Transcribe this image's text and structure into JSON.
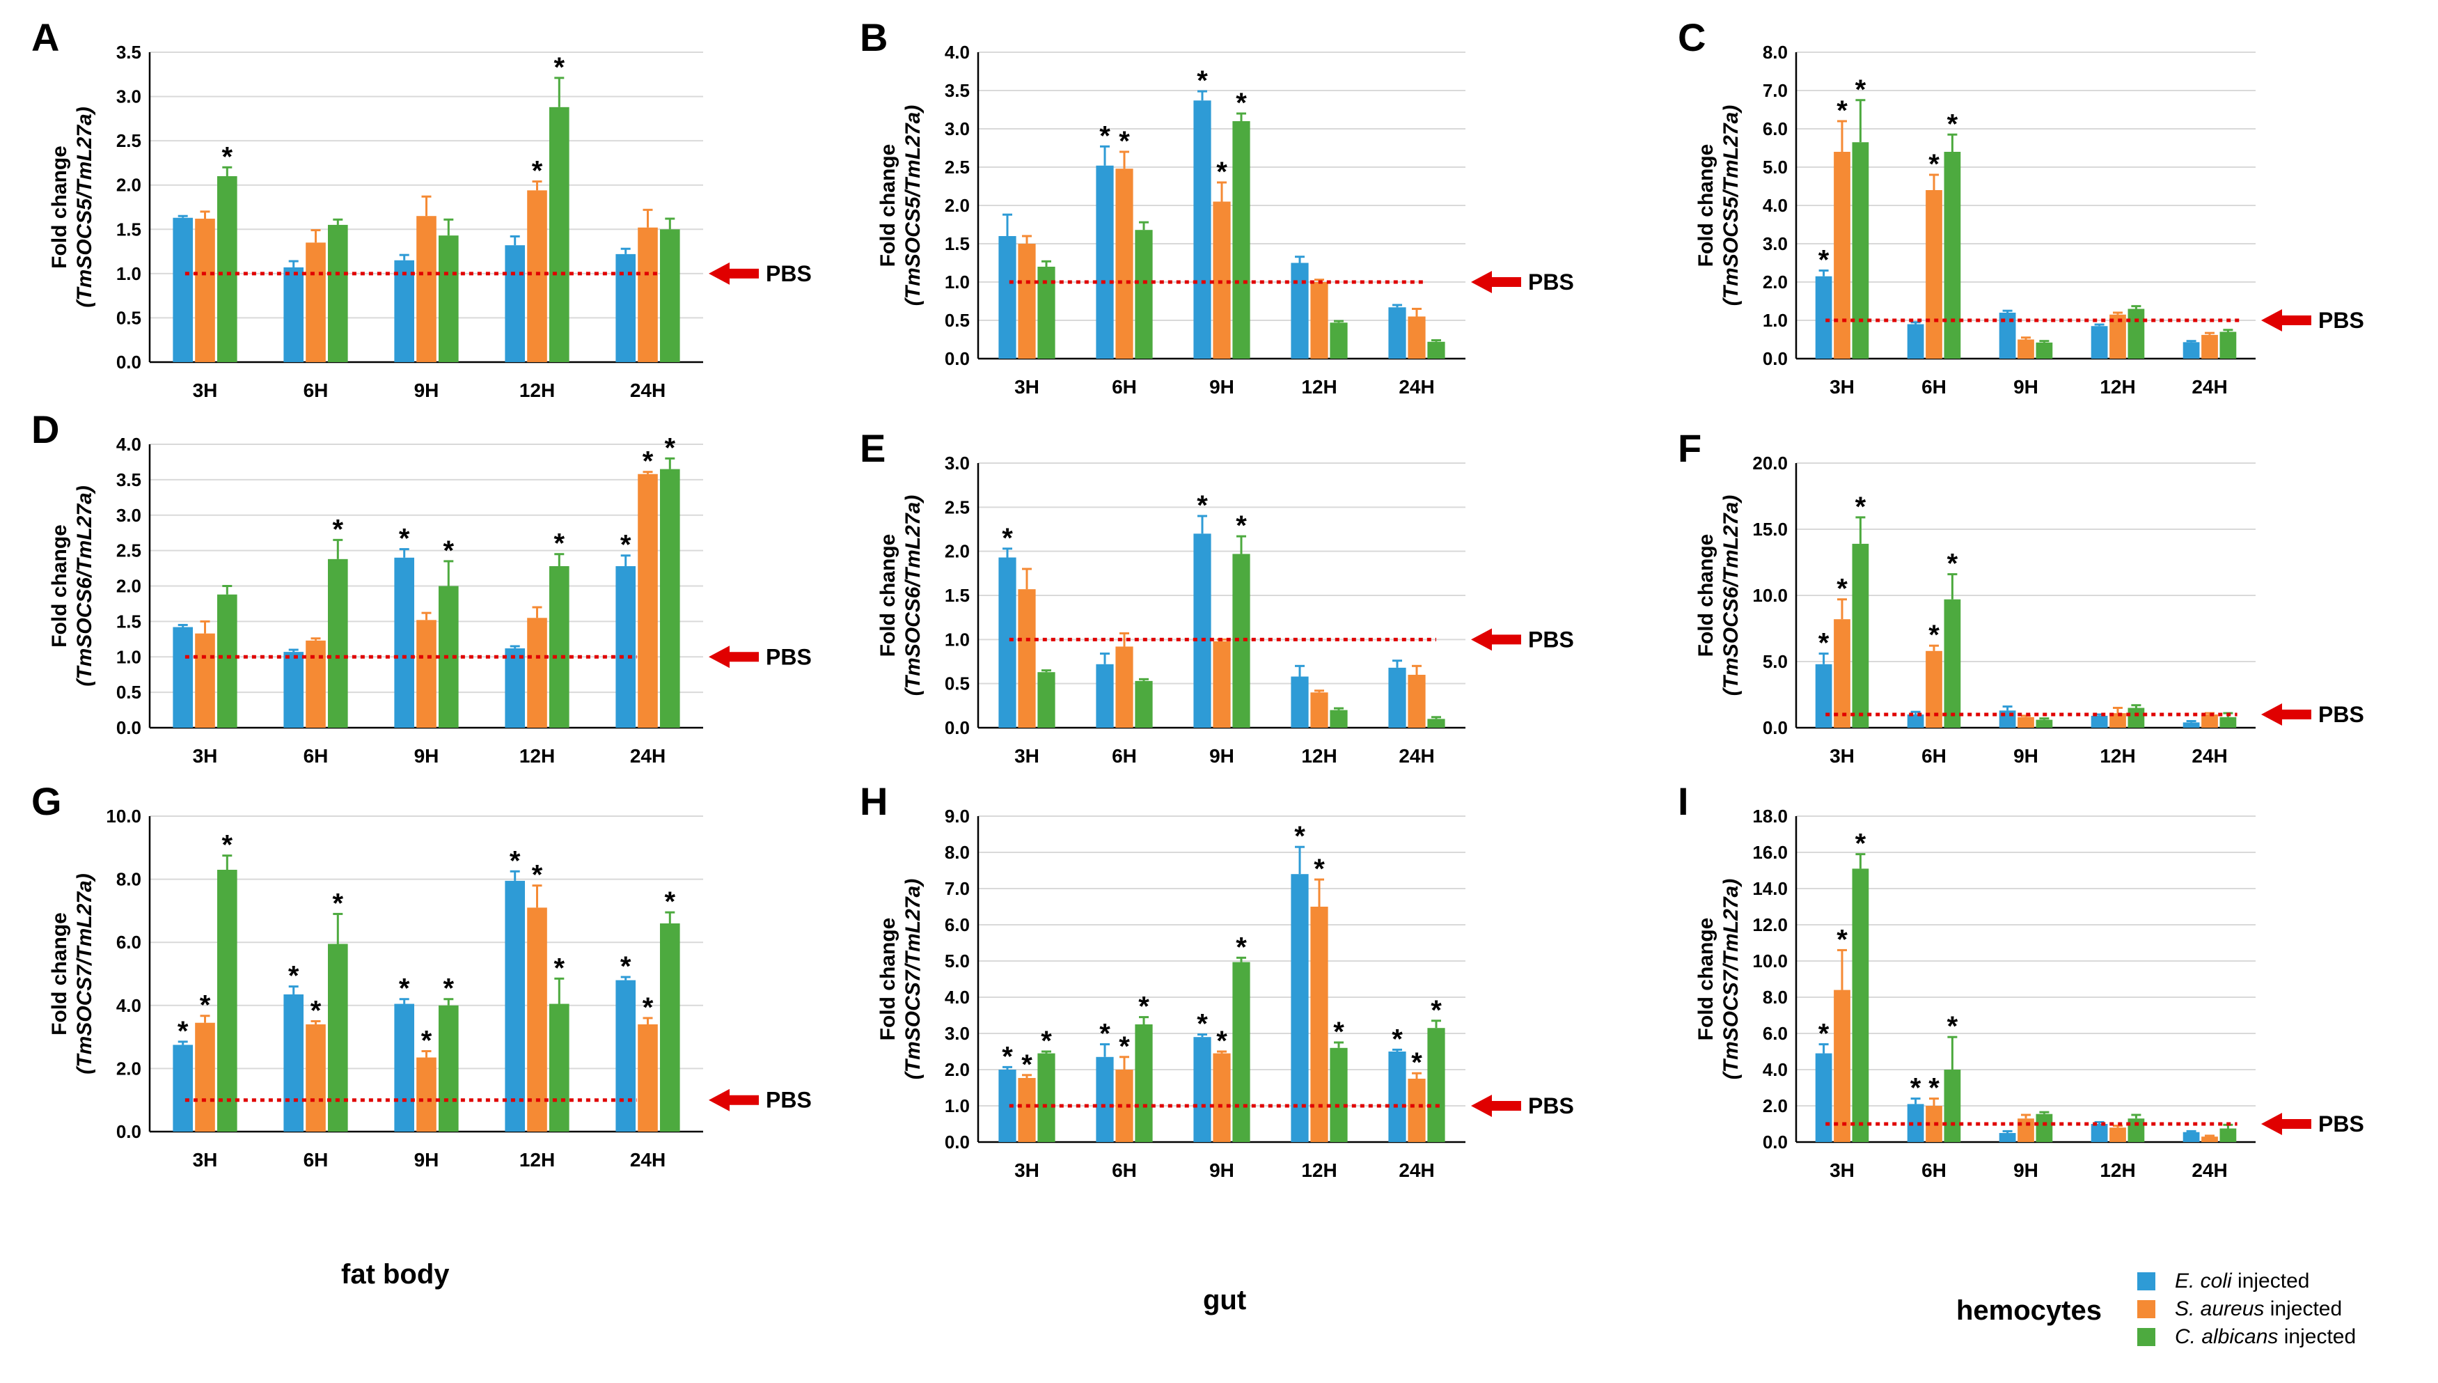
{
  "colors": {
    "e_coli": "#2E9BD6",
    "s_aureus": "#F58A34",
    "c_albicans": "#4DAA3F",
    "pbs_line": "#E00000",
    "grid": "#D9D9D9"
  },
  "categories": [
    "3H",
    "6H",
    "9H",
    "12H",
    "24H"
  ],
  "ylabel_prefix": "Fold change",
  "pbs_label": "PBS",
  "star": "*",
  "tissues": {
    "fat_body": "fat body",
    "gut": "gut",
    "hemocytes": "hemocytes"
  },
  "legend": [
    {
      "species": "E. coli",
      "suffix": " injected",
      "color_key": "e_coli"
    },
    {
      "species": "S. aureus",
      "suffix": " injected",
      "color_key": "s_aureus"
    },
    {
      "species": "C. albicans",
      "suffix": " injected",
      "color_key": "c_albicans"
    }
  ],
  "chart_data": [
    {
      "panel": "A",
      "type": "bar",
      "ylabel": "(TmSOCS5/TmL27a)",
      "ylim": [
        0,
        3.5
      ],
      "yticks": [
        "0.0",
        "0.5",
        "1.0",
        "1.5",
        "2.0",
        "2.5",
        "3.0",
        "3.5"
      ],
      "pbs_level": 1.0,
      "categories": [
        "3H",
        "6H",
        "9H",
        "12H",
        "24H"
      ],
      "series": [
        {
          "name": "E. coli injected",
          "values": [
            1.63,
            1.07,
            1.15,
            1.32,
            1.22
          ],
          "errors": [
            0.02,
            0.07,
            0.06,
            0.1,
            0.06
          ],
          "sig": [
            false,
            false,
            false,
            false,
            false
          ]
        },
        {
          "name": "S. aureus injected",
          "values": [
            1.62,
            1.35,
            1.65,
            1.94,
            1.52
          ],
          "errors": [
            0.08,
            0.14,
            0.22,
            0.1,
            0.2
          ],
          "sig": [
            false,
            false,
            false,
            true,
            false
          ]
        },
        {
          "name": "C. albicans injected",
          "values": [
            2.1,
            1.55,
            1.43,
            2.88,
            1.5
          ],
          "errors": [
            0.1,
            0.06,
            0.18,
            0.33,
            0.12
          ],
          "sig": [
            true,
            false,
            false,
            true,
            false
          ]
        }
      ]
    },
    {
      "panel": "B",
      "type": "bar",
      "ylabel": "(TmSOCS5/TmL27a)",
      "ylim": [
        0,
        4.0
      ],
      "yticks": [
        "0.0",
        "0.5",
        "1.0",
        "1.5",
        "2.0",
        "2.5",
        "3.0",
        "3.5",
        "4.0"
      ],
      "pbs_level": 1.0,
      "categories": [
        "3H",
        "6H",
        "9H",
        "12H",
        "24H"
      ],
      "series": [
        {
          "name": "E. coli injected",
          "values": [
            1.6,
            2.52,
            3.37,
            1.25,
            0.67
          ],
          "errors": [
            0.28,
            0.25,
            0.12,
            0.08,
            0.03
          ],
          "sig": [
            false,
            true,
            true,
            false,
            false
          ]
        },
        {
          "name": "S. aureus injected",
          "values": [
            1.5,
            2.48,
            2.05,
            1.0,
            0.55
          ],
          "errors": [
            0.1,
            0.22,
            0.25,
            0.03,
            0.1
          ],
          "sig": [
            false,
            true,
            true,
            false,
            false
          ]
        },
        {
          "name": "C. albicans injected",
          "values": [
            1.2,
            1.68,
            3.1,
            0.47,
            0.22
          ],
          "errors": [
            0.07,
            0.1,
            0.1,
            0.02,
            0.02
          ],
          "sig": [
            false,
            false,
            true,
            false,
            false
          ]
        }
      ]
    },
    {
      "panel": "C",
      "type": "bar",
      "ylabel": "(TmSOCS5/TmL27a)",
      "ylim": [
        0,
        8.0
      ],
      "yticks": [
        "0.0",
        "1.0",
        "2.0",
        "3.0",
        "4.0",
        "5.0",
        "6.0",
        "7.0",
        "8.0"
      ],
      "pbs_level": 1.0,
      "categories": [
        "3H",
        "6H",
        "9H",
        "12H",
        "24H"
      ],
      "series": [
        {
          "name": "E. coli injected",
          "values": [
            2.15,
            0.9,
            1.2,
            0.85,
            0.43
          ],
          "errors": [
            0.15,
            0.05,
            0.05,
            0.04,
            0.03
          ],
          "sig": [
            true,
            false,
            false,
            false,
            false
          ]
        },
        {
          "name": "S. aureus injected",
          "values": [
            5.4,
            4.4,
            0.5,
            1.15,
            0.62
          ],
          "errors": [
            0.8,
            0.4,
            0.05,
            0.05,
            0.05
          ],
          "sig": [
            true,
            true,
            false,
            false,
            false
          ]
        },
        {
          "name": "C. albicans injected",
          "values": [
            5.65,
            5.4,
            0.42,
            1.3,
            0.7
          ],
          "errors": [
            1.1,
            0.45,
            0.04,
            0.07,
            0.05
          ],
          "sig": [
            true,
            true,
            false,
            false,
            false
          ]
        }
      ]
    },
    {
      "panel": "D",
      "type": "bar",
      "ylabel": "(TmSOCS6/TmL27a)",
      "ylim": [
        0,
        4.0
      ],
      "yticks": [
        "0.0",
        "0.5",
        "1.0",
        "1.5",
        "2.0",
        "2.5",
        "3.0",
        "3.5",
        "4.0"
      ],
      "pbs_level": 1.0,
      "categories": [
        "3H",
        "6H",
        "9H",
        "12H",
        "24H"
      ],
      "series": [
        {
          "name": "E. coli injected",
          "values": [
            1.42,
            1.07,
            2.4,
            1.12,
            2.28
          ],
          "errors": [
            0.03,
            0.03,
            0.12,
            0.03,
            0.15
          ],
          "sig": [
            false,
            false,
            true,
            false,
            true
          ]
        },
        {
          "name": "S. aureus injected",
          "values": [
            1.33,
            1.23,
            1.52,
            1.55,
            3.58
          ],
          "errors": [
            0.17,
            0.03,
            0.1,
            0.15,
            0.03
          ],
          "sig": [
            false,
            false,
            false,
            false,
            true
          ]
        },
        {
          "name": "C. albicans injected",
          "values": [
            1.88,
            2.38,
            2.0,
            2.28,
            3.65
          ],
          "errors": [
            0.12,
            0.27,
            0.35,
            0.17,
            0.15
          ],
          "sig": [
            false,
            true,
            true,
            true,
            true
          ]
        }
      ]
    },
    {
      "panel": "E",
      "type": "bar",
      "ylabel": "(TmSOCS6/TmL27a)",
      "ylim": [
        0,
        3.0
      ],
      "yticks": [
        "0.0",
        "0.5",
        "1.0",
        "1.5",
        "2.0",
        "2.5",
        "3.0"
      ],
      "pbs_level": 1.0,
      "categories": [
        "3H",
        "6H",
        "9H",
        "12H",
        "24H"
      ],
      "series": [
        {
          "name": "E. coli injected",
          "values": [
            1.93,
            0.72,
            2.2,
            0.58,
            0.68
          ],
          "errors": [
            0.1,
            0.12,
            0.2,
            0.12,
            0.08
          ],
          "sig": [
            true,
            false,
            true,
            false,
            false
          ]
        },
        {
          "name": "S. aureus injected",
          "values": [
            1.57,
            0.92,
            0.98,
            0.4,
            0.6
          ],
          "errors": [
            0.23,
            0.15,
            0.02,
            0.02,
            0.1
          ],
          "sig": [
            false,
            false,
            false,
            false,
            false
          ]
        },
        {
          "name": "C. albicans injected",
          "values": [
            0.63,
            0.53,
            1.97,
            0.2,
            0.1
          ],
          "errors": [
            0.02,
            0.02,
            0.2,
            0.02,
            0.02
          ],
          "sig": [
            false,
            false,
            true,
            false,
            false
          ]
        }
      ]
    },
    {
      "panel": "F",
      "type": "bar",
      "ylabel": "(TmSOCS6/TmL27a)",
      "ylim": [
        0,
        20.0
      ],
      "yticks": [
        "0.0",
        "5.0",
        "10.0",
        "15.0",
        "20.0"
      ],
      "pbs_level": 1.0,
      "categories": [
        "3H",
        "6H",
        "9H",
        "12H",
        "24H"
      ],
      "series": [
        {
          "name": "E. coli injected",
          "values": [
            4.8,
            1.0,
            1.3,
            0.9,
            0.4
          ],
          "errors": [
            0.8,
            0.2,
            0.3,
            0.1,
            0.1
          ],
          "sig": [
            true,
            false,
            false,
            false,
            false
          ]
        },
        {
          "name": "S. aureus injected",
          "values": [
            8.2,
            5.8,
            0.8,
            1.1,
            1.0
          ],
          "errors": [
            1.5,
            0.4,
            0.1,
            0.4,
            0.1
          ],
          "sig": [
            true,
            true,
            false,
            false,
            false
          ]
        },
        {
          "name": "C. albicans injected",
          "values": [
            13.9,
            9.7,
            0.6,
            1.5,
            0.8
          ],
          "errors": [
            2.0,
            1.9,
            0.1,
            0.2,
            0.3
          ],
          "sig": [
            true,
            true,
            false,
            false,
            false
          ]
        }
      ]
    },
    {
      "panel": "G",
      "type": "bar",
      "ylabel": "(TmSOCS7/TmL27a)",
      "ylim": [
        0,
        10.0
      ],
      "yticks": [
        "0.0",
        "2.0",
        "4.0",
        "6.0",
        "8.0",
        "10.0"
      ],
      "pbs_level": 1.0,
      "categories": [
        "3H",
        "6H",
        "9H",
        "12H",
        "24H"
      ],
      "series": [
        {
          "name": "E. coli injected",
          "values": [
            2.75,
            4.35,
            4.05,
            7.95,
            4.8
          ],
          "errors": [
            0.1,
            0.25,
            0.15,
            0.3,
            0.1
          ],
          "sig": [
            true,
            true,
            true,
            true,
            true
          ]
        },
        {
          "name": "S. aureus injected",
          "values": [
            3.45,
            3.4,
            2.35,
            7.1,
            3.4
          ],
          "errors": [
            0.22,
            0.1,
            0.2,
            0.7,
            0.2
          ],
          "sig": [
            true,
            true,
            true,
            true,
            true
          ]
        },
        {
          "name": "C. albicans injected",
          "values": [
            8.3,
            5.95,
            4.0,
            4.05,
            6.6
          ],
          "errors": [
            0.45,
            0.95,
            0.2,
            0.8,
            0.35
          ],
          "sig": [
            true,
            true,
            true,
            true,
            true
          ]
        }
      ]
    },
    {
      "panel": "H",
      "type": "bar",
      "ylabel": "(TmSOCS7/TmL27a)",
      "ylim": [
        0,
        9.0
      ],
      "yticks": [
        "0.0",
        "1.0",
        "2.0",
        "3.0",
        "4.0",
        "5.0",
        "6.0",
        "7.0",
        "8.0",
        "9.0"
      ],
      "pbs_level": 1.0,
      "categories": [
        "3H",
        "6H",
        "9H",
        "12H",
        "24H"
      ],
      "series": [
        {
          "name": "E. coli injected",
          "values": [
            2.0,
            2.35,
            2.9,
            7.4,
            2.5
          ],
          "errors": [
            0.07,
            0.35,
            0.07,
            0.75,
            0.05
          ],
          "sig": [
            true,
            true,
            true,
            true,
            true
          ]
        },
        {
          "name": "S. aureus injected",
          "values": [
            1.77,
            2.0,
            2.45,
            6.5,
            1.75
          ],
          "errors": [
            0.08,
            0.35,
            0.05,
            0.75,
            0.15
          ],
          "sig": [
            true,
            true,
            true,
            true,
            true
          ]
        },
        {
          "name": "C. albicans injected",
          "values": [
            2.45,
            3.25,
            4.97,
            2.6,
            3.15
          ],
          "errors": [
            0.05,
            0.2,
            0.12,
            0.15,
            0.2
          ],
          "sig": [
            true,
            true,
            true,
            true,
            true
          ]
        }
      ]
    },
    {
      "panel": "I",
      "type": "bar",
      "ylabel": "(TmSOCS7/TmL27a)",
      "ylim": [
        0,
        18.0
      ],
      "yticks": [
        "0.0",
        "2.0",
        "4.0",
        "6.0",
        "8.0",
        "10.0",
        "12.0",
        "14.0",
        "16.0",
        "18.0"
      ],
      "pbs_level": 1.0,
      "categories": [
        "3H",
        "6H",
        "9H",
        "12H",
        "24H"
      ],
      "series": [
        {
          "name": "E. coli injected",
          "values": [
            4.9,
            2.1,
            0.5,
            1.0,
            0.55
          ],
          "errors": [
            0.5,
            0.3,
            0.1,
            0.1,
            0.05
          ],
          "sig": [
            true,
            true,
            false,
            false,
            false
          ]
        },
        {
          "name": "S. aureus injected",
          "values": [
            8.4,
            2.0,
            1.3,
            0.8,
            0.3
          ],
          "errors": [
            2.2,
            0.4,
            0.2,
            0.1,
            0.05
          ],
          "sig": [
            true,
            true,
            false,
            false,
            false
          ]
        },
        {
          "name": "C. albicans injected",
          "values": [
            15.1,
            4.0,
            1.55,
            1.3,
            0.75
          ],
          "errors": [
            0.8,
            1.8,
            0.1,
            0.2,
            0.2
          ],
          "sig": [
            true,
            true,
            false,
            false,
            false
          ]
        }
      ]
    }
  ]
}
